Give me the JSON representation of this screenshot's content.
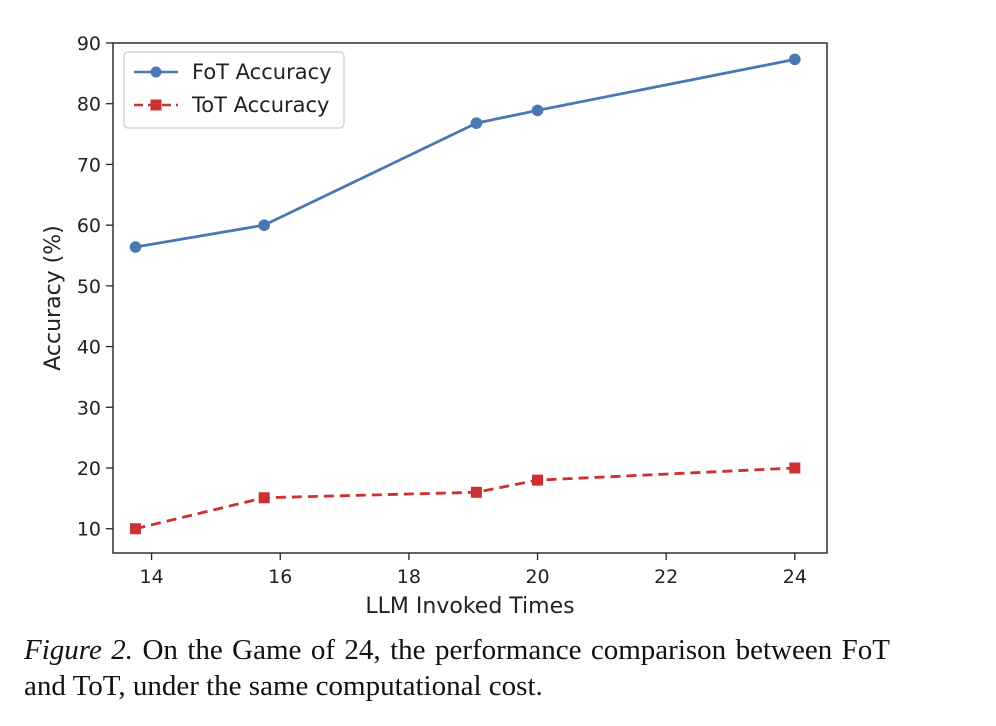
{
  "chart_data": {
    "type": "line",
    "xlabel": "LLM Invoked Times",
    "ylabel": "Accuracy (%)",
    "xlim": [
      13.4,
      24.5
    ],
    "ylim": [
      6,
      90
    ],
    "x_ticks": [
      14,
      16,
      18,
      20,
      22,
      24
    ],
    "y_ticks": [
      10,
      20,
      30,
      40,
      50,
      60,
      70,
      80,
      90
    ],
    "grid": false,
    "legend_position": "top-left",
    "series": [
      {
        "name": "FoT Accuracy",
        "x": [
          13.75,
          15.75,
          19.05,
          20.0,
          24.0
        ],
        "y": [
          56.4,
          60.0,
          76.8,
          78.9,
          87.3
        ],
        "color": "#4a78b3",
        "line_style": "solid",
        "marker": "circle"
      },
      {
        "name": "ToT Accuracy",
        "x": [
          13.75,
          15.75,
          19.05,
          20.0,
          24.0
        ],
        "y": [
          10.0,
          15.1,
          16.0,
          18.0,
          20.0
        ],
        "color": "#cc3030",
        "line_style": "dashed",
        "marker": "square"
      }
    ]
  },
  "caption": {
    "label": "Figure 2.",
    "text": " On the Game of 24, the performance comparison between FoT and ToT, under the same computational cost."
  }
}
